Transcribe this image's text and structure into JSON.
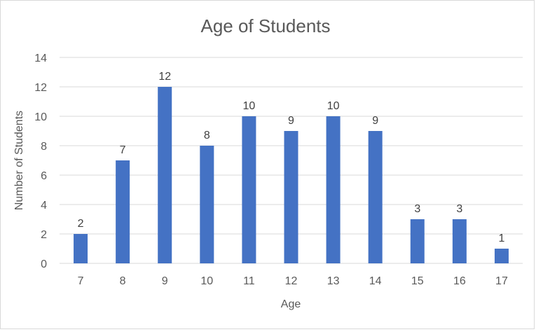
{
  "chart_data": {
    "type": "bar",
    "title": "Age of Students",
    "xlabel": "Age",
    "ylabel": "Number of Students",
    "categories": [
      "7",
      "8",
      "9",
      "10",
      "11",
      "12",
      "13",
      "14",
      "15",
      "16",
      "17"
    ],
    "values": [
      2,
      7,
      12,
      8,
      10,
      9,
      10,
      9,
      3,
      3,
      1
    ],
    "ylim": [
      0,
      14
    ],
    "yticks": [
      0,
      2,
      4,
      6,
      8,
      10,
      12,
      14
    ],
    "grid": true,
    "legend": "none",
    "data_labels": true,
    "bar_color": "#4472C4"
  }
}
